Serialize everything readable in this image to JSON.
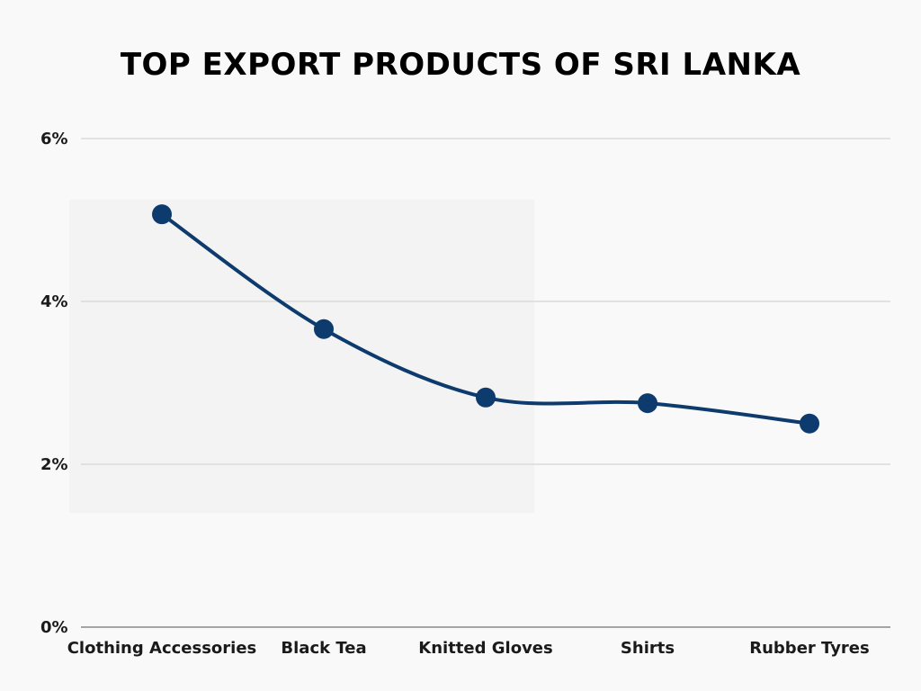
{
  "chart_data": {
    "type": "line",
    "title": "TOP EXPORT PRODUCTS OF SRI LANKA",
    "xlabel": "",
    "ylabel": "",
    "categories": [
      "Clothing Accessories",
      "Black Tea",
      "Knitted Gloves",
      "Shirts",
      "Rubber Tyres"
    ],
    "series": [
      {
        "values": [
          5.07,
          3.66,
          2.82,
          2.75,
          2.5
        ]
      }
    ],
    "ylim": [
      0,
      6
    ],
    "yticks": [
      0,
      2,
      4,
      6
    ],
    "ytick_labels": [
      "0%",
      "2%",
      "4%",
      "6%"
    ],
    "grid": true,
    "line_shape": "smooth",
    "colors": {
      "line": "#0d3b6e",
      "grid": "#cccccc",
      "axis": "#888888",
      "background": "#f9f9f9",
      "highlight_box": "#f3f3f3"
    }
  }
}
